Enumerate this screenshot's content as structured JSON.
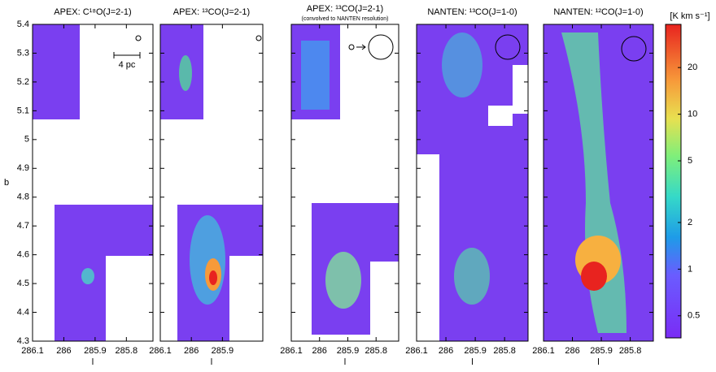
{
  "chart_data": [
    {
      "type": "map",
      "title": "APEX: C¹⁸O(J=2-1)",
      "xlabel": "l",
      "ylabel": "b",
      "annotation": "4 pc",
      "xlim": [
        286.1,
        285.715
      ],
      "ylim": [
        4.3,
        5.4
      ],
      "xticks": [
        286.1,
        286,
        285.9,
        285.8
      ],
      "yticks": [
        4.3,
        4.4,
        4.5,
        4.6,
        4.7,
        4.8,
        4.9,
        5,
        5.1,
        5.2,
        5.3,
        5.4
      ]
    },
    {
      "type": "map",
      "title": "APEX: ¹³CO(J=2-1)",
      "xlabel": "l",
      "xlim": [
        286.1,
        285.77
      ],
      "ylim": [
        4.3,
        5.4
      ],
      "xticks": [
        286.1,
        286,
        285.9
      ]
    },
    {
      "type": "map",
      "title": "APEX: ¹³CO(J=2-1)",
      "subtitle": "(convolved to NANTEN resolution)",
      "xlabel": "l",
      "xlim": [
        286.1,
        285.72
      ],
      "ylim": [
        4.3,
        5.4
      ],
      "xticks": [
        286.1,
        286,
        285.9,
        285.8
      ]
    },
    {
      "type": "map",
      "title": "NANTEN: ¹³CO(J=1-0)",
      "xlabel": "l",
      "xlim": [
        286.1,
        285.72
      ],
      "ylim": [
        4.3,
        5.4
      ],
      "xticks": [
        286.1,
        286,
        285.9,
        285.8
      ]
    },
    {
      "type": "map",
      "title": "NANTEN: ¹²CO(J=1-0)",
      "xlabel": "l",
      "xlim": [
        286.1,
        285.72
      ],
      "ylim": [
        4.3,
        5.4
      ],
      "xticks": [
        286.1,
        286,
        285.9,
        285.8
      ]
    },
    {
      "type": "colorbar",
      "label": "[K km s⁻¹]",
      "log": true,
      "ylim": [
        0.36,
        38
      ],
      "yticks": [
        0.5,
        1,
        2,
        5,
        10,
        20
      ]
    }
  ]
}
